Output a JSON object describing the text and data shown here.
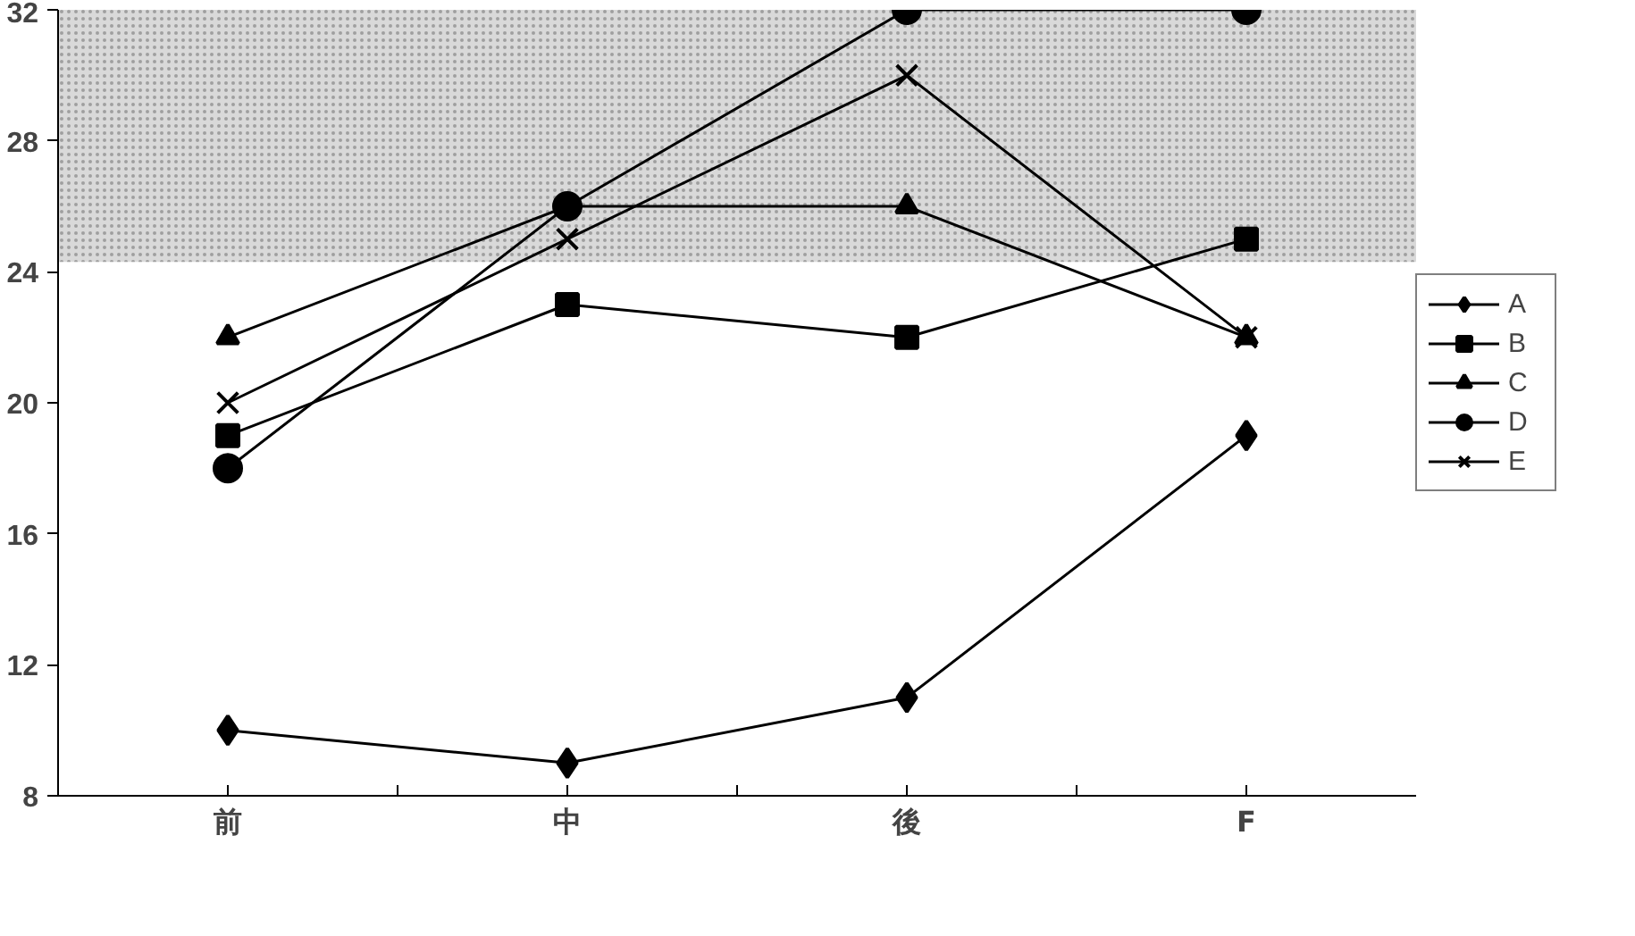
{
  "chart_data": {
    "type": "line",
    "categories": [
      "前",
      "中",
      "後",
      "F"
    ],
    "series": [
      {
        "name": "A",
        "color": "#000000",
        "marker": "diamond",
        "values": [
          10,
          9,
          11,
          19
        ]
      },
      {
        "name": "B",
        "color": "#000000",
        "marker": "square",
        "values": [
          19,
          23,
          22,
          25
        ]
      },
      {
        "name": "C",
        "color": "#000000",
        "marker": "triangle",
        "values": [
          22,
          26,
          26,
          22
        ]
      },
      {
        "name": "D",
        "color": "#000000",
        "marker": "circle",
        "values": [
          18,
          26,
          32,
          32
        ]
      },
      {
        "name": "E",
        "color": "#000000",
        "marker": "cross",
        "values": [
          20,
          25,
          30,
          22
        ]
      }
    ],
    "ylim": [
      8,
      32
    ],
    "yticks": [
      8,
      12,
      16,
      20,
      24,
      28,
      32
    ],
    "bands": [
      {
        "axis": "y",
        "from": 24.3,
        "to": 32,
        "color": "#bfbfbf"
      }
    ],
    "grid": false,
    "legend": "right",
    "line_style": "solid"
  }
}
